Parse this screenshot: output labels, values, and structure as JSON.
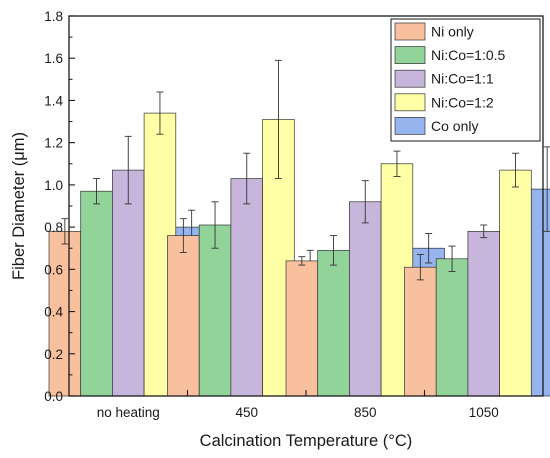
{
  "chart_data": {
    "type": "bar",
    "xlabel": "Calcination Temperature (°C)",
    "ylabel": "Fiber Diameter (μm)",
    "ylim": [
      0.0,
      1.8
    ],
    "yticks": [
      "0.0",
      "0.2",
      "0.4",
      "0.6",
      "0.8",
      "1.0",
      "1.2",
      "1.4",
      "1.6",
      "1.8"
    ],
    "ytick_values": [
      0.0,
      0.2,
      0.4,
      0.6,
      0.8,
      1.0,
      1.2,
      1.4,
      1.6,
      1.8
    ],
    "categories": [
      "no heating",
      "450",
      "850",
      "1050"
    ],
    "grid": false,
    "legend_position": "top-right",
    "series": [
      {
        "name": "Ni only",
        "color": "#F9C09E",
        "values": [
          0.78,
          0.76,
          0.64,
          0.61
        ],
        "errors": [
          0.06,
          0.08,
          0.02,
          0.06
        ]
      },
      {
        "name": "Ni:Co=1:0.5",
        "color": "#92D39A",
        "values": [
          0.97,
          0.81,
          0.69,
          0.65
        ],
        "errors": [
          0.06,
          0.11,
          0.07,
          0.06
        ]
      },
      {
        "name": "Ni:Co=1:1",
        "color": "#C7B5DB",
        "values": [
          1.07,
          1.03,
          0.92,
          0.78
        ],
        "errors": [
          0.16,
          0.12,
          0.1,
          0.03
        ]
      },
      {
        "name": "Ni:Co=1:2",
        "color": "#FFFFA6",
        "values": [
          1.34,
          1.31,
          1.1,
          1.07
        ],
        "errors": [
          0.1,
          0.28,
          0.06,
          0.08
        ]
      },
      {
        "name": "Co only",
        "color": "#96B4EE",
        "values": [
          0.8,
          0.63,
          0.7,
          0.98
        ],
        "errors": [
          0.08,
          0.06,
          0.07,
          0.2
        ]
      }
    ]
  }
}
